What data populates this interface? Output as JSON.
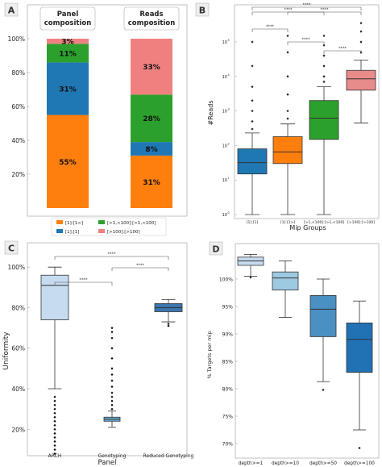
{
  "panels": {
    "A": {
      "letter": "A"
    },
    "B": {
      "letter": "B"
    },
    "C": {
      "letter": "C"
    },
    "D": {
      "letter": "D"
    }
  },
  "chart_data": [
    {
      "id": "A",
      "type": "bar",
      "stacked": true,
      "categories": [
        "Panel\ncomposition",
        "Reads\ncomposition"
      ],
      "series": [
        {
          "name": "[1]:[1>]",
          "color": "#ff7f0e",
          "values": [
            55,
            31
          ],
          "labels": [
            "55%",
            "31%"
          ]
        },
        {
          "name": "[1]:[1]",
          "color": "#1f77b4",
          "values": [
            31,
            8
          ],
          "labels": [
            "31%",
            "8%"
          ]
        },
        {
          "name": "[>1,<100]:[>1,<100]",
          "color": "#2ca02c",
          "values": [
            11,
            28
          ],
          "labels": [
            "11%",
            "28%"
          ]
        },
        {
          "name": "[>100]:[>100]",
          "color": "#f08080",
          "values": [
            3,
            33
          ],
          "labels": [
            "3%",
            "33%"
          ]
        }
      ],
      "ylim": [
        0,
        100
      ],
      "yticks": [
        "20%",
        "40%",
        "60%",
        "80%",
        "100%"
      ],
      "legend": "bottom"
    },
    {
      "id": "B",
      "type": "box",
      "xlabel": "Mip Groups",
      "ylabel": "#Reads",
      "yscale": "log",
      "categories": [
        "[1]:[1]",
        "[1]:[1>]",
        "[>1,<100]:[>1,<100]",
        "[>100]:[>100]"
      ],
      "colors": [
        "#1f77b4",
        "#ff7f0e",
        "#2ca02c",
        "#e88b8b"
      ],
      "boxes": [
        {
          "whislo": 1,
          "q1": 15,
          "med": 32,
          "q3": 80,
          "whishi": 230,
          "fliers_hi": [
            300,
            500,
            1000,
            2000,
            5000,
            20000,
            100000
          ]
        },
        {
          "whislo": 1,
          "q1": 30,
          "med": 65,
          "q3": 180,
          "whishi": 420,
          "fliers_hi": [
            600,
            1000,
            3000,
            10000,
            50000,
            150000
          ]
        },
        {
          "whislo": 1,
          "q1": 150,
          "med": 620,
          "q3": 2000,
          "whishi": 5000,
          "fliers_hi": [
            7000,
            10000,
            20000,
            40000,
            80000,
            150000
          ]
        },
        {
          "whislo": 450,
          "q1": 4000,
          "med": 8500,
          "q3": 15000,
          "whishi": 30000,
          "fliers_hi": [
            50000,
            100000,
            200000,
            350000
          ]
        }
      ],
      "significance": [
        "****",
        "****",
        "****",
        "****",
        "****",
        "****"
      ]
    },
    {
      "id": "C",
      "type": "box",
      "xlabel": "Panel",
      "ylabel": "Uniformity",
      "categories": [
        "ARCH",
        "Genotyping",
        "Reduced Genotyping"
      ],
      "colors": [
        "#c6dbef",
        "#6baed6",
        "#3a76af"
      ],
      "yticks": [
        "20%",
        "40%",
        "60%",
        "80%",
        "100%"
      ],
      "ylim": [
        7,
        112
      ],
      "boxes": [
        {
          "whislo": 40,
          "q1": 74,
          "med": 91,
          "q3": 96,
          "whishi": 100,
          "fliers_lo": [
            8,
            10,
            12,
            14,
            16,
            18,
            20,
            22,
            24,
            26,
            28,
            30,
            32,
            34,
            36
          ]
        },
        {
          "whislo": 21,
          "q1": 24,
          "med": 25,
          "q3": 26,
          "whishi": 29,
          "fliers_hi": [
            30,
            32,
            34,
            36,
            38,
            41,
            44,
            47,
            50,
            55,
            60,
            65,
            68,
            70
          ]
        },
        {
          "whislo": 73,
          "q1": 78,
          "med": 80,
          "q3": 82,
          "whishi": 84,
          "fliers_lo": [
            71,
            72
          ]
        }
      ],
      "significance": [
        "****",
        "****",
        "****"
      ]
    },
    {
      "id": "D",
      "type": "box",
      "ylabel": "% Targets per mip",
      "categories": [
        "depth>=1",
        "depth>=10",
        "depth>=50",
        "depth>=100"
      ],
      "colors": [
        "#c6dbef",
        "#9ecae1",
        "#4a90c2",
        "#2171b5"
      ],
      "yticks": [
        "70%",
        "75%",
        "80%",
        "85%",
        "90%",
        "95%",
        "100%"
      ],
      "ylim": [
        69,
        105
      ],
      "boxes": [
        {
          "whislo": 100.5,
          "q1": 102.5,
          "med": 103.3,
          "q3": 104,
          "whishi": 104.5,
          "fliers_lo": [
            100.3
          ]
        },
        {
          "whislo": 93,
          "q1": 98,
          "med": 100.2,
          "q3": 101.3,
          "whishi": 103.3
        },
        {
          "whislo": 81.3,
          "q1": 89.5,
          "med": 94.5,
          "q3": 97,
          "whishi": 100,
          "fliers_lo": [
            79.8
          ]
        },
        {
          "whislo": 72.5,
          "q1": 83,
          "med": 89,
          "q3": 92,
          "whishi": 96,
          "fliers_lo": [
            69.2
          ]
        }
      ]
    }
  ]
}
